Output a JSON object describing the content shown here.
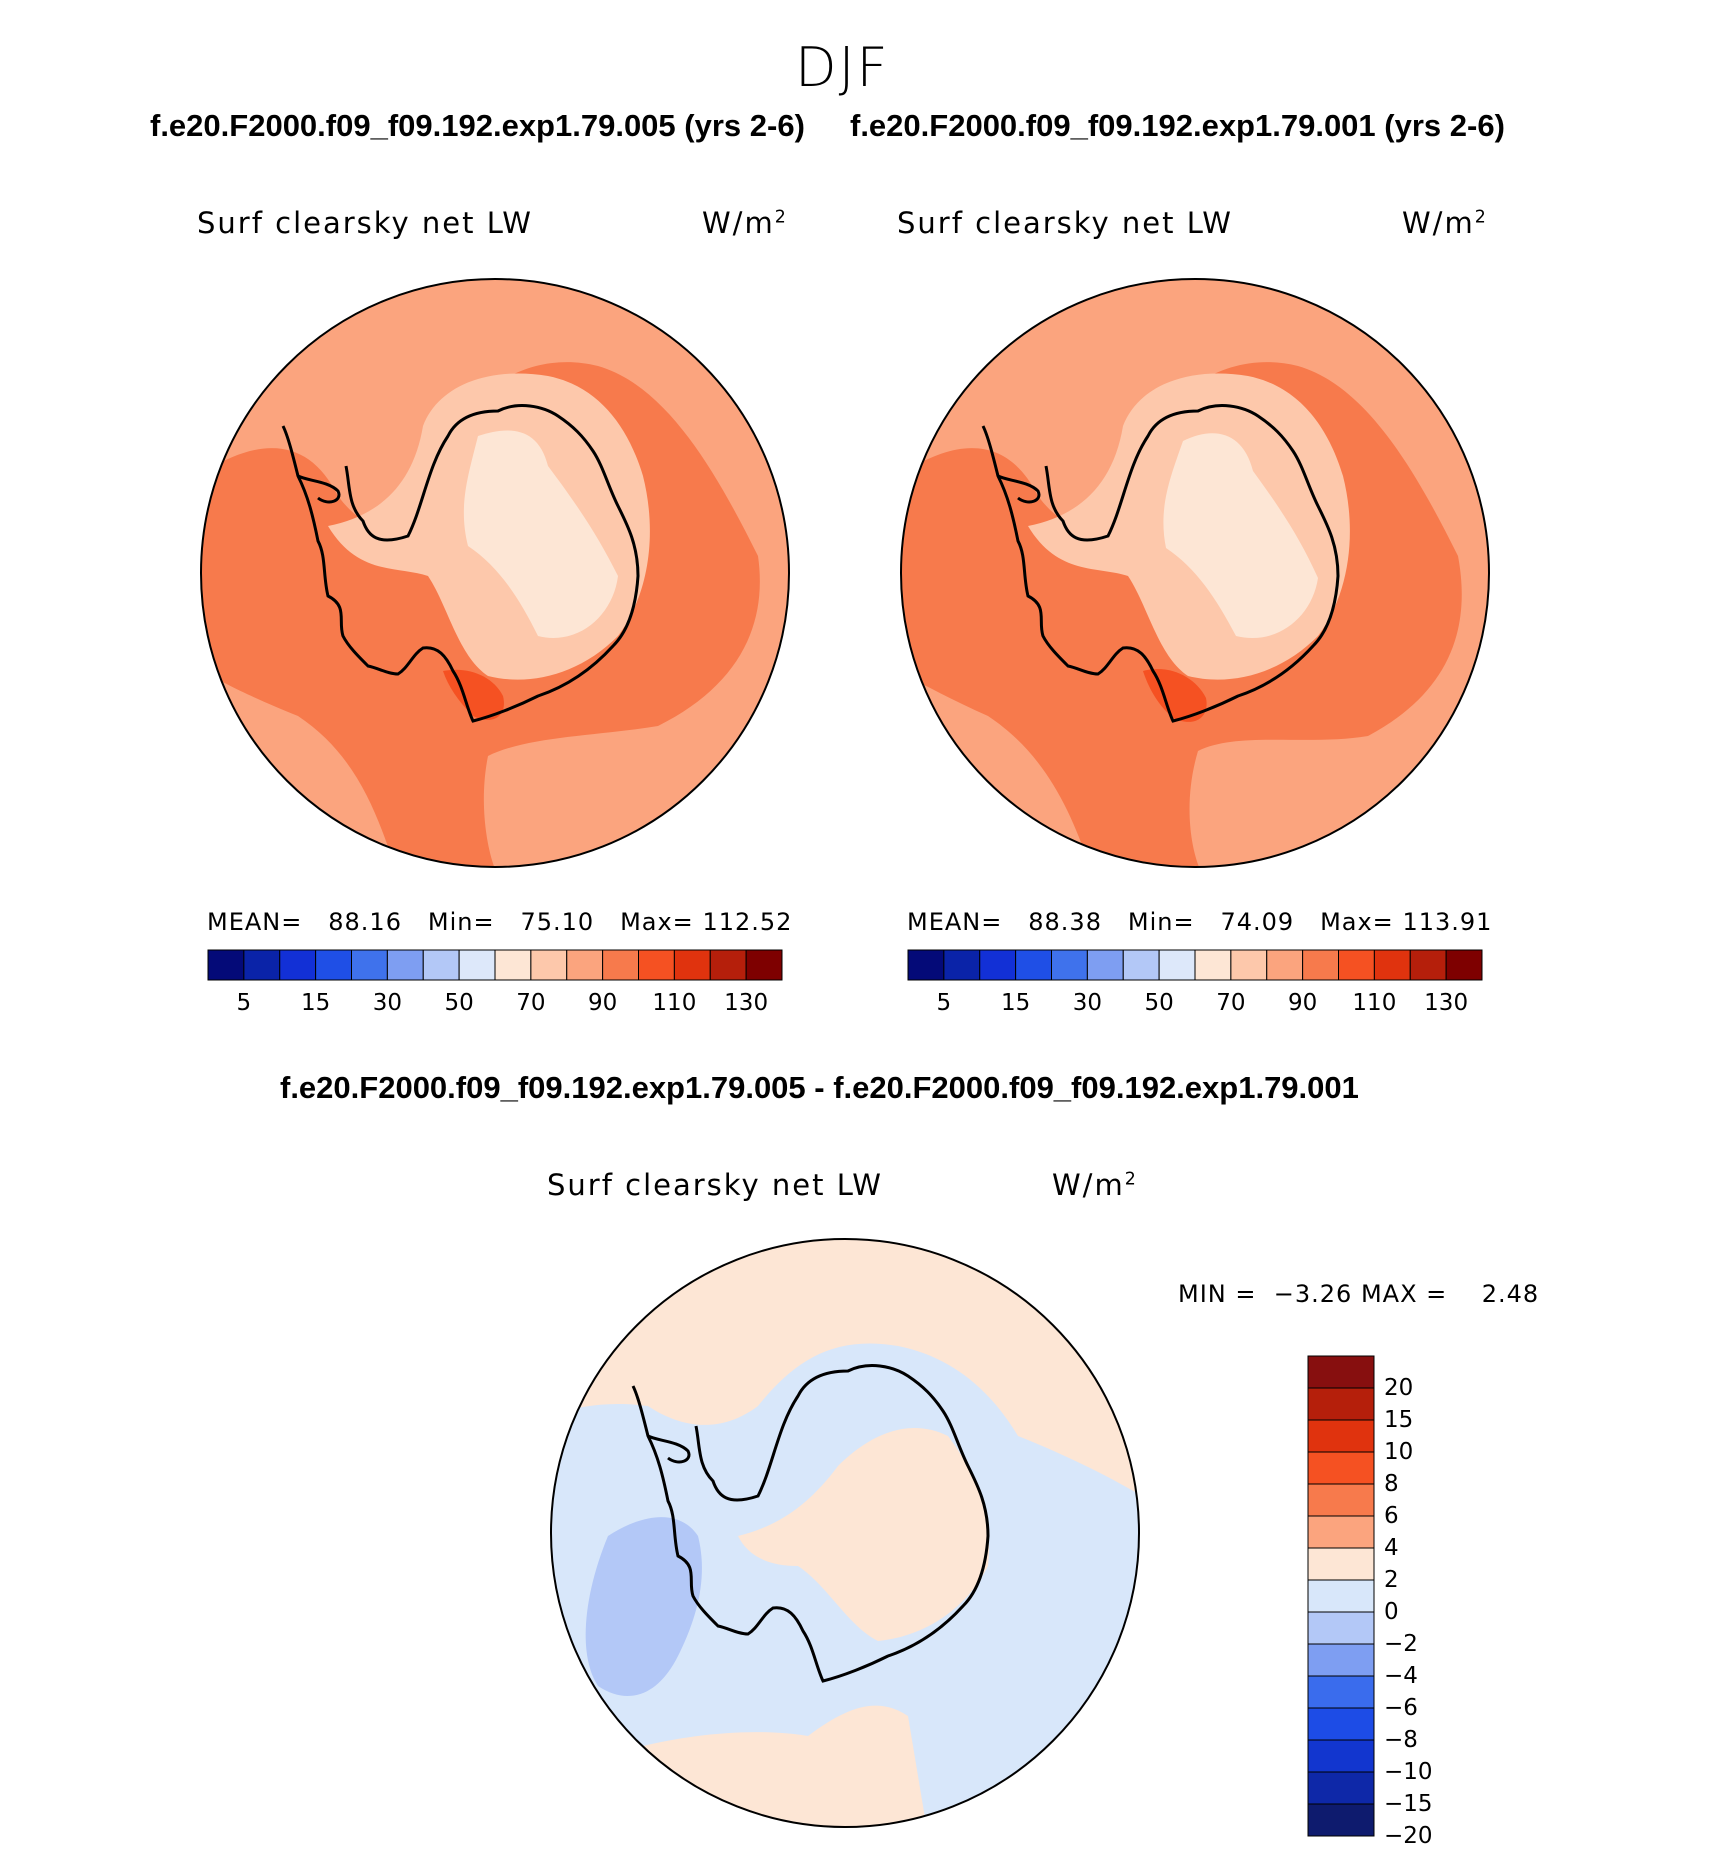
{
  "season": "DJF",
  "case_a_title": "f.e20.F2000.f09_f09.192.exp1.79.005 (yrs 2-6)",
  "case_b_title": "f.e20.F2000.f09_f09.192.exp1.79.001 (yrs 2-6)",
  "diff_title": "f.e20.F2000.f09_f09.192.exp1.79.005 - f.e20.F2000.f09_f09.192.exp1.79.001",
  "colors": {
    "abs_palette": [
      "#040a78",
      "#0a23a8",
      "#1230d6",
      "#1f4fe6",
      "#3f72ec",
      "#7e9ef2",
      "#b3c8f7",
      "#dde8fa",
      "#fde6d5",
      "#fdc8ab",
      "#fba47e",
      "#f77a4c",
      "#f55122",
      "#e0330e",
      "#b51f0b",
      "#7e0000"
    ],
    "diff_palette": [
      "#0e1b6e",
      "#0e28a8",
      "#1236cf",
      "#1d4ce6",
      "#3a6ced",
      "#7e9ef2",
      "#b3c8f7",
      "#d8e7fa",
      "#fde6d5",
      "#fba47e",
      "#f77a4c",
      "#f55122",
      "#e0330e",
      "#b51f0b",
      "#870f0f"
    ]
  },
  "chart_data": [
    {
      "type": "heatmap",
      "projection": "south-polar-stereographic",
      "title": "Surf clearsky net LW",
      "units": "W/m",
      "units_exp": "2",
      "case": "f.e20.F2000.f09_f09.192.exp1.79.005 (yrs 2-6)",
      "stats": {
        "mean_label": "MEAN=",
        "mean": "88.16",
        "min_label": "Min=",
        "min": "75.10",
        "max_label": "Max=",
        "max": "112.52"
      },
      "colorbar": {
        "orientation": "horizontal",
        "tick_labels": [
          "5",
          "15",
          "30",
          "50",
          "70",
          "90",
          "110",
          "130"
        ]
      }
    },
    {
      "type": "heatmap",
      "projection": "south-polar-stereographic",
      "title": "Surf clearsky net LW",
      "units": "W/m",
      "units_exp": "2",
      "case": "f.e20.F2000.f09_f09.192.exp1.79.001 (yrs 2-6)",
      "stats": {
        "mean_label": "MEAN=",
        "mean": "88.38",
        "min_label": "Min=",
        "min": "74.09",
        "max_label": "Max=",
        "max": "113.91"
      },
      "colorbar": {
        "orientation": "horizontal",
        "tick_labels": [
          "5",
          "15",
          "30",
          "50",
          "70",
          "90",
          "110",
          "130"
        ]
      }
    },
    {
      "type": "heatmap",
      "projection": "south-polar-stereographic",
      "title": "Surf clearsky net LW",
      "units": "W/m",
      "units_exp": "2",
      "case": "f.e20.F2000.f09_f09.192.exp1.79.005 - f.e20.F2000.f09_f09.192.exp1.79.001",
      "stats": {
        "min_label": "MIN =",
        "min": "−3.26",
        "max_label": "MAX =",
        "max": "2.48"
      },
      "colorbar": {
        "orientation": "vertical",
        "tick_labels": [
          "20",
          "15",
          "10",
          "8",
          "6",
          "4",
          "2",
          "0",
          "−2",
          "−4",
          "−6",
          "−8",
          "−10",
          "−15",
          "−20"
        ]
      }
    }
  ]
}
